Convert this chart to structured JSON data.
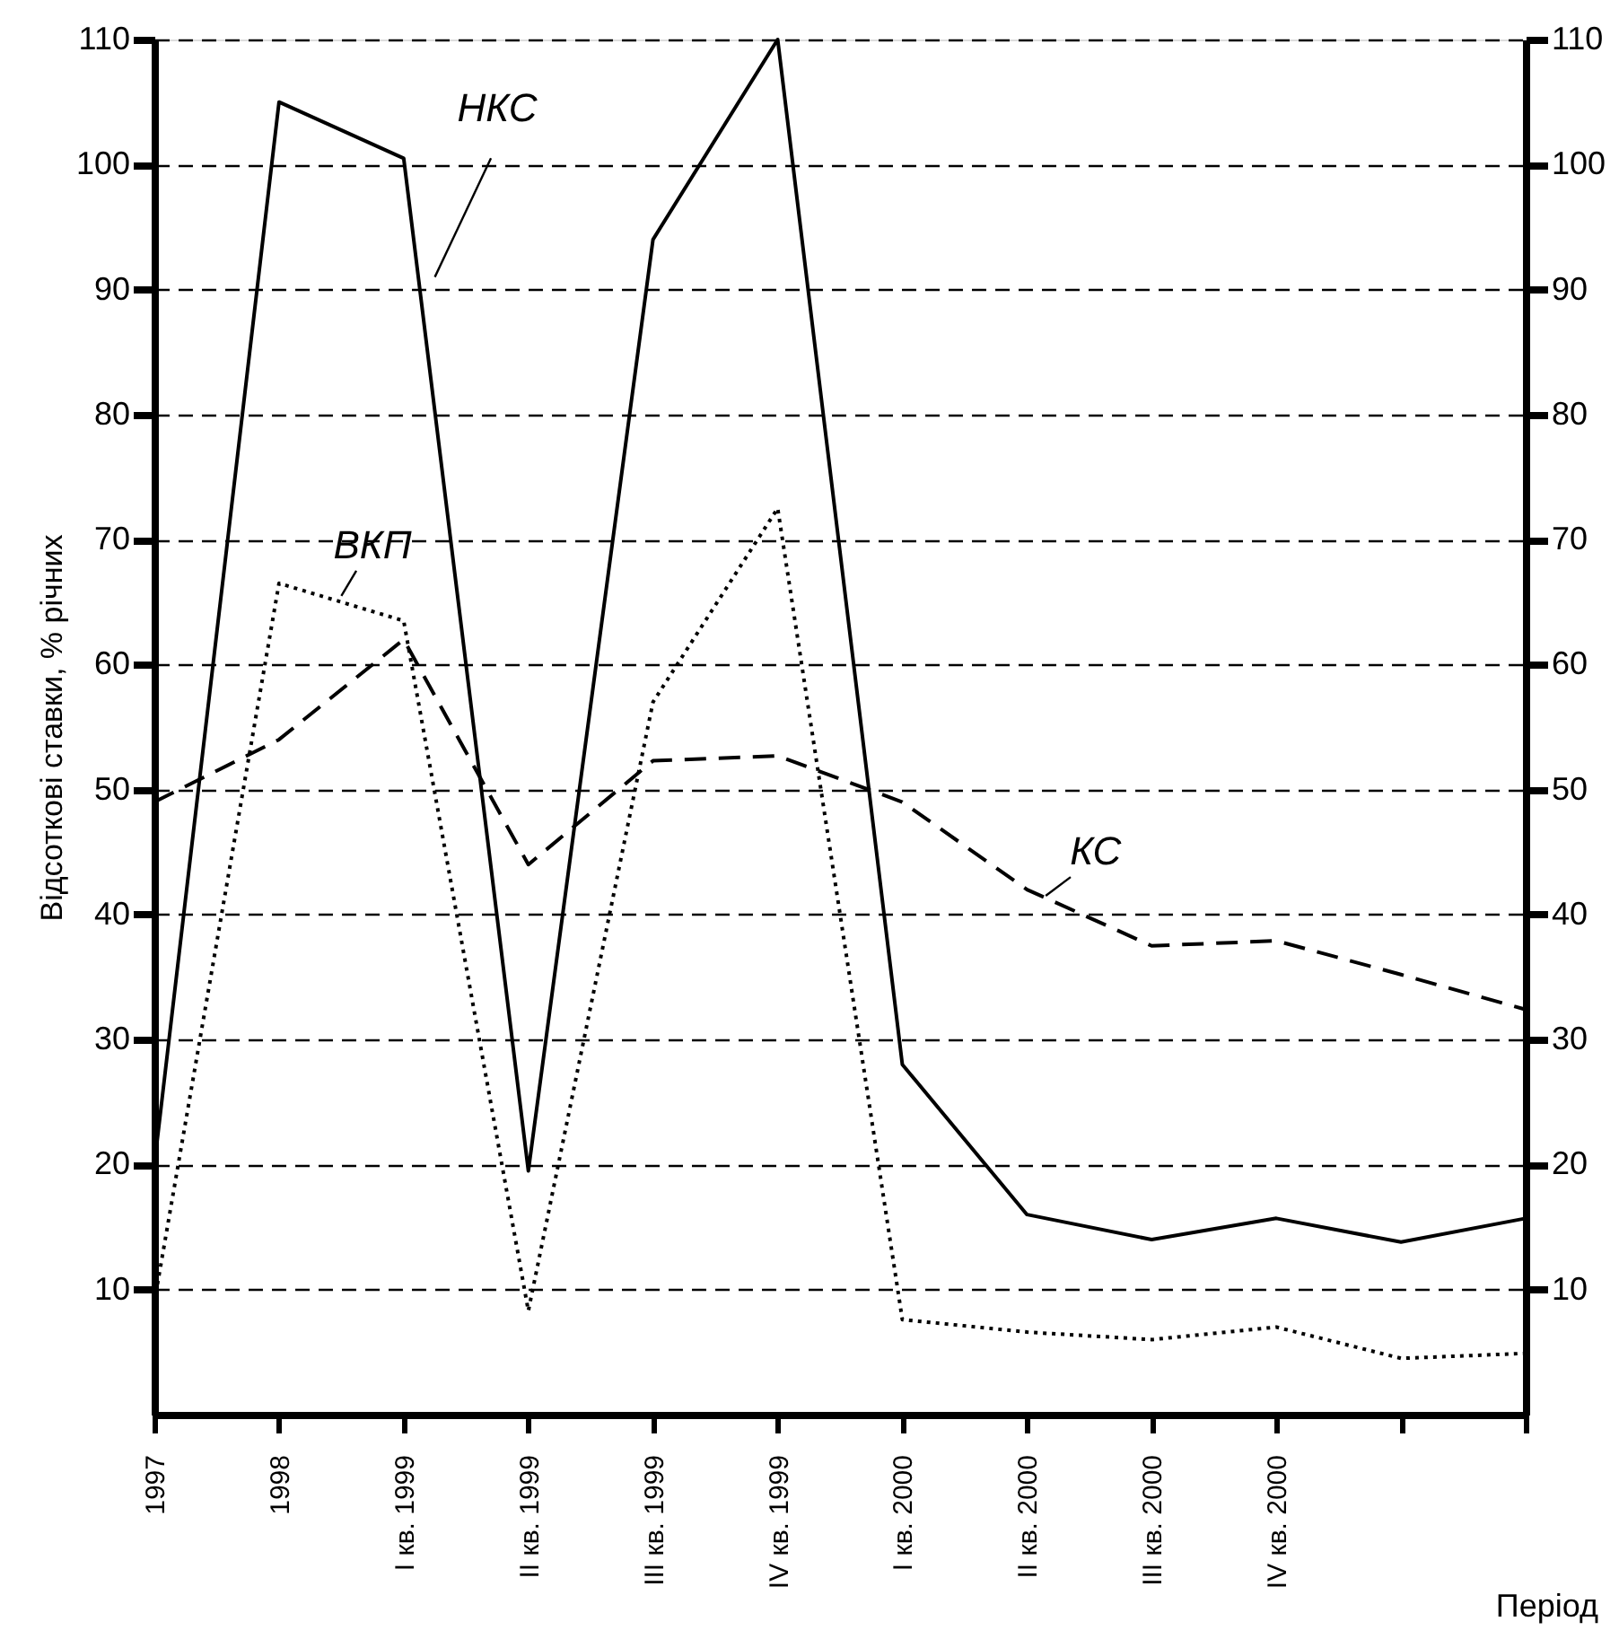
{
  "chart_data": {
    "type": "line",
    "ylabel": "Відсоткові ставки, % річних",
    "xlabel": "Період",
    "categories": [
      "1997",
      "1998",
      "I кв. 1999",
      "II кв. 1999",
      "III кв. 1999",
      "IV кв. 1999",
      "I кв. 2000",
      "II кв. 2000",
      "III кв. 2000",
      "IV кв. 2000",
      null,
      null
    ],
    "ylim": [
      0,
      110
    ],
    "yticks": [
      10,
      20,
      30,
      40,
      50,
      60,
      70,
      80,
      90,
      100,
      110
    ],
    "y2lim": [
      0,
      110
    ],
    "y2ticks": [
      10,
      20,
      30,
      40,
      50,
      60,
      70,
      80,
      90,
      100,
      110
    ],
    "grid": "y",
    "marker": "none",
    "series": [
      {
        "name": "НКС",
        "color": "#000000",
        "line_style": "solid",
        "values": [
          20,
          105,
          100.5,
          19.5,
          94,
          110,
          28,
          16,
          14,
          15.7,
          13.8,
          15.7
        ]
      },
      {
        "name": "ВКП",
        "color": "#000000",
        "line_style": "dotted",
        "values": [
          9,
          66.5,
          63.5,
          8.3,
          57,
          72.5,
          7.6,
          6.6,
          6,
          7,
          4.5,
          4.9
        ]
      },
      {
        "name": "КС",
        "color": "#000000",
        "line_style": "dashed",
        "values": [
          49,
          54,
          62,
          44,
          52.3,
          52.7,
          49,
          42,
          37.5,
          37.9,
          35.2,
          32.4
        ]
      }
    ]
  }
}
